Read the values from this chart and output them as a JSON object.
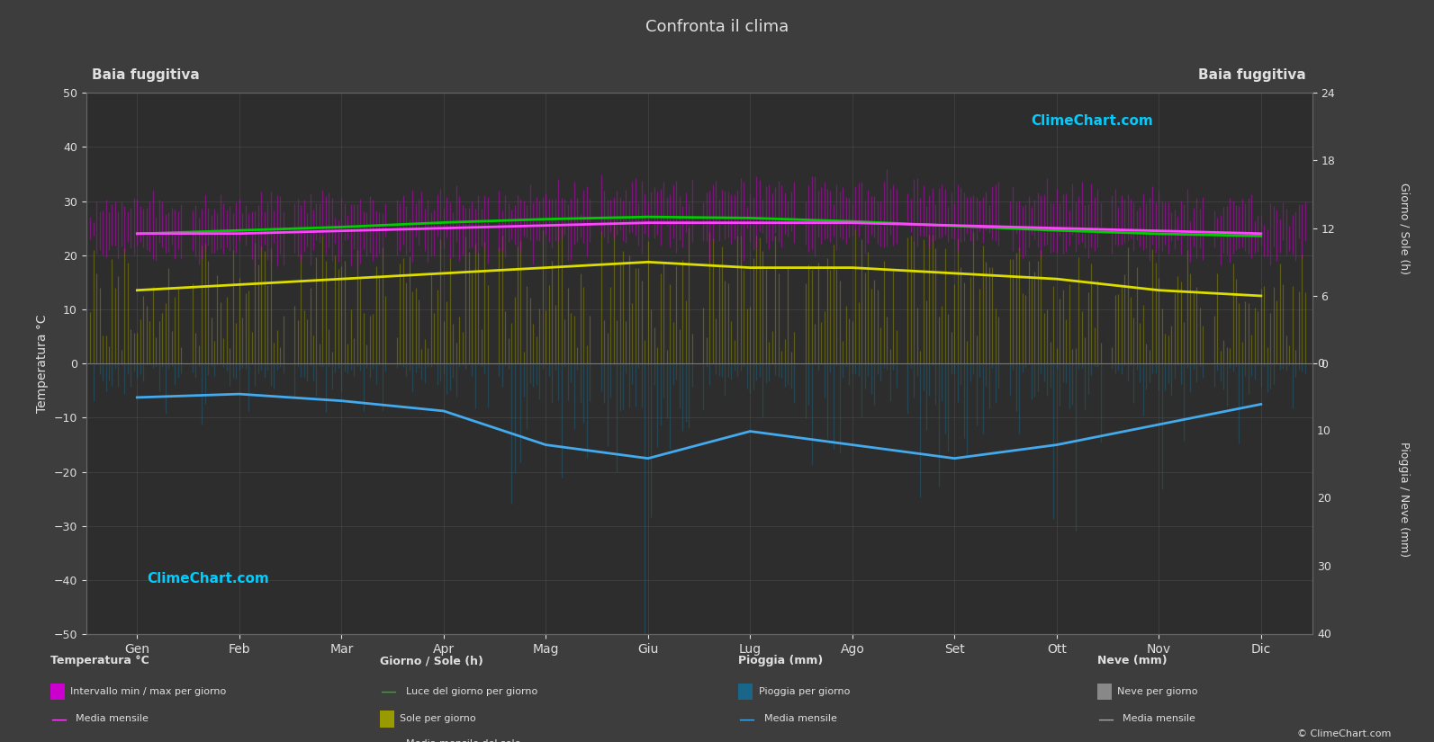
{
  "title": "Confronta il clima",
  "location_left": "Baia fuggitiva",
  "location_right": "Baia fuggitiva",
  "background_color": "#3d3d3d",
  "plot_bg_color": "#2d2d2d",
  "text_color": "#e0e0e0",
  "months": [
    "Gen",
    "Feb",
    "Mar",
    "Apr",
    "Mag",
    "Giu",
    "Lug",
    "Ago",
    "Set",
    "Ott",
    "Nov",
    "Dic"
  ],
  "temp_min_daily": [
    20.5,
    20.5,
    20.5,
    21.0,
    22.0,
    23.0,
    23.0,
    23.0,
    22.5,
    21.5,
    21.0,
    20.5
  ],
  "temp_max_daily": [
    29.0,
    29.0,
    29.5,
    30.0,
    31.0,
    31.5,
    32.0,
    32.0,
    31.5,
    30.5,
    29.5,
    28.5
  ],
  "temp_min_scatter_spread": 1.5,
  "temp_max_scatter_spread": 1.5,
  "temp_monthly_mean": [
    24.0,
    24.0,
    24.5,
    25.0,
    25.5,
    26.0,
    26.0,
    26.0,
    25.5,
    25.0,
    24.5,
    24.0
  ],
  "sun_hours_daily_mean": [
    6.5,
    7.0,
    7.5,
    8.0,
    8.5,
    9.0,
    8.5,
    8.5,
    8.0,
    7.5,
    6.5,
    6.0
  ],
  "sun_hours_scatter_max": [
    10.5,
    11.0,
    11.5,
    12.0,
    12.5,
    12.8,
    12.5,
    12.2,
    11.8,
    11.2,
    10.5,
    10.2
  ],
  "daylight_hours": [
    11.5,
    11.8,
    12.1,
    12.5,
    12.8,
    13.0,
    12.9,
    12.6,
    12.2,
    11.8,
    11.5,
    11.3
  ],
  "rain_daily_scatter": [
    5.0,
    4.0,
    5.0,
    6.0,
    12.0,
    15.0,
    10.0,
    12.0,
    15.0,
    13.0,
    9.0,
    6.0
  ],
  "rain_monthly_mean": [
    5.0,
    4.5,
    5.5,
    7.0,
    12.0,
    14.0,
    10.0,
    12.0,
    14.0,
    12.0,
    9.0,
    6.0
  ],
  "temp_ylim_min": -50,
  "temp_ylim_max": 50,
  "sun_max": 24,
  "rain_max": 40,
  "grid_color": "#555555",
  "temp_scatter_color": "#cc00cc",
  "temp_scatter_alpha": 0.5,
  "temp_line_color": "#ff44ff",
  "sun_scatter_color": "#999900",
  "sun_scatter_alpha": 0.45,
  "sun_line_color": "#dddd00",
  "daylight_color": "#00cc00",
  "rain_scatter_color": "#1a6688",
  "rain_scatter_alpha": 0.45,
  "rain_line_color": "#44aaee",
  "snow_bar_color": "#888888",
  "logo_color": "#00ccff",
  "logo_text": "ClimeChart.com",
  "copyright_text": "© ClimeChart.com"
}
